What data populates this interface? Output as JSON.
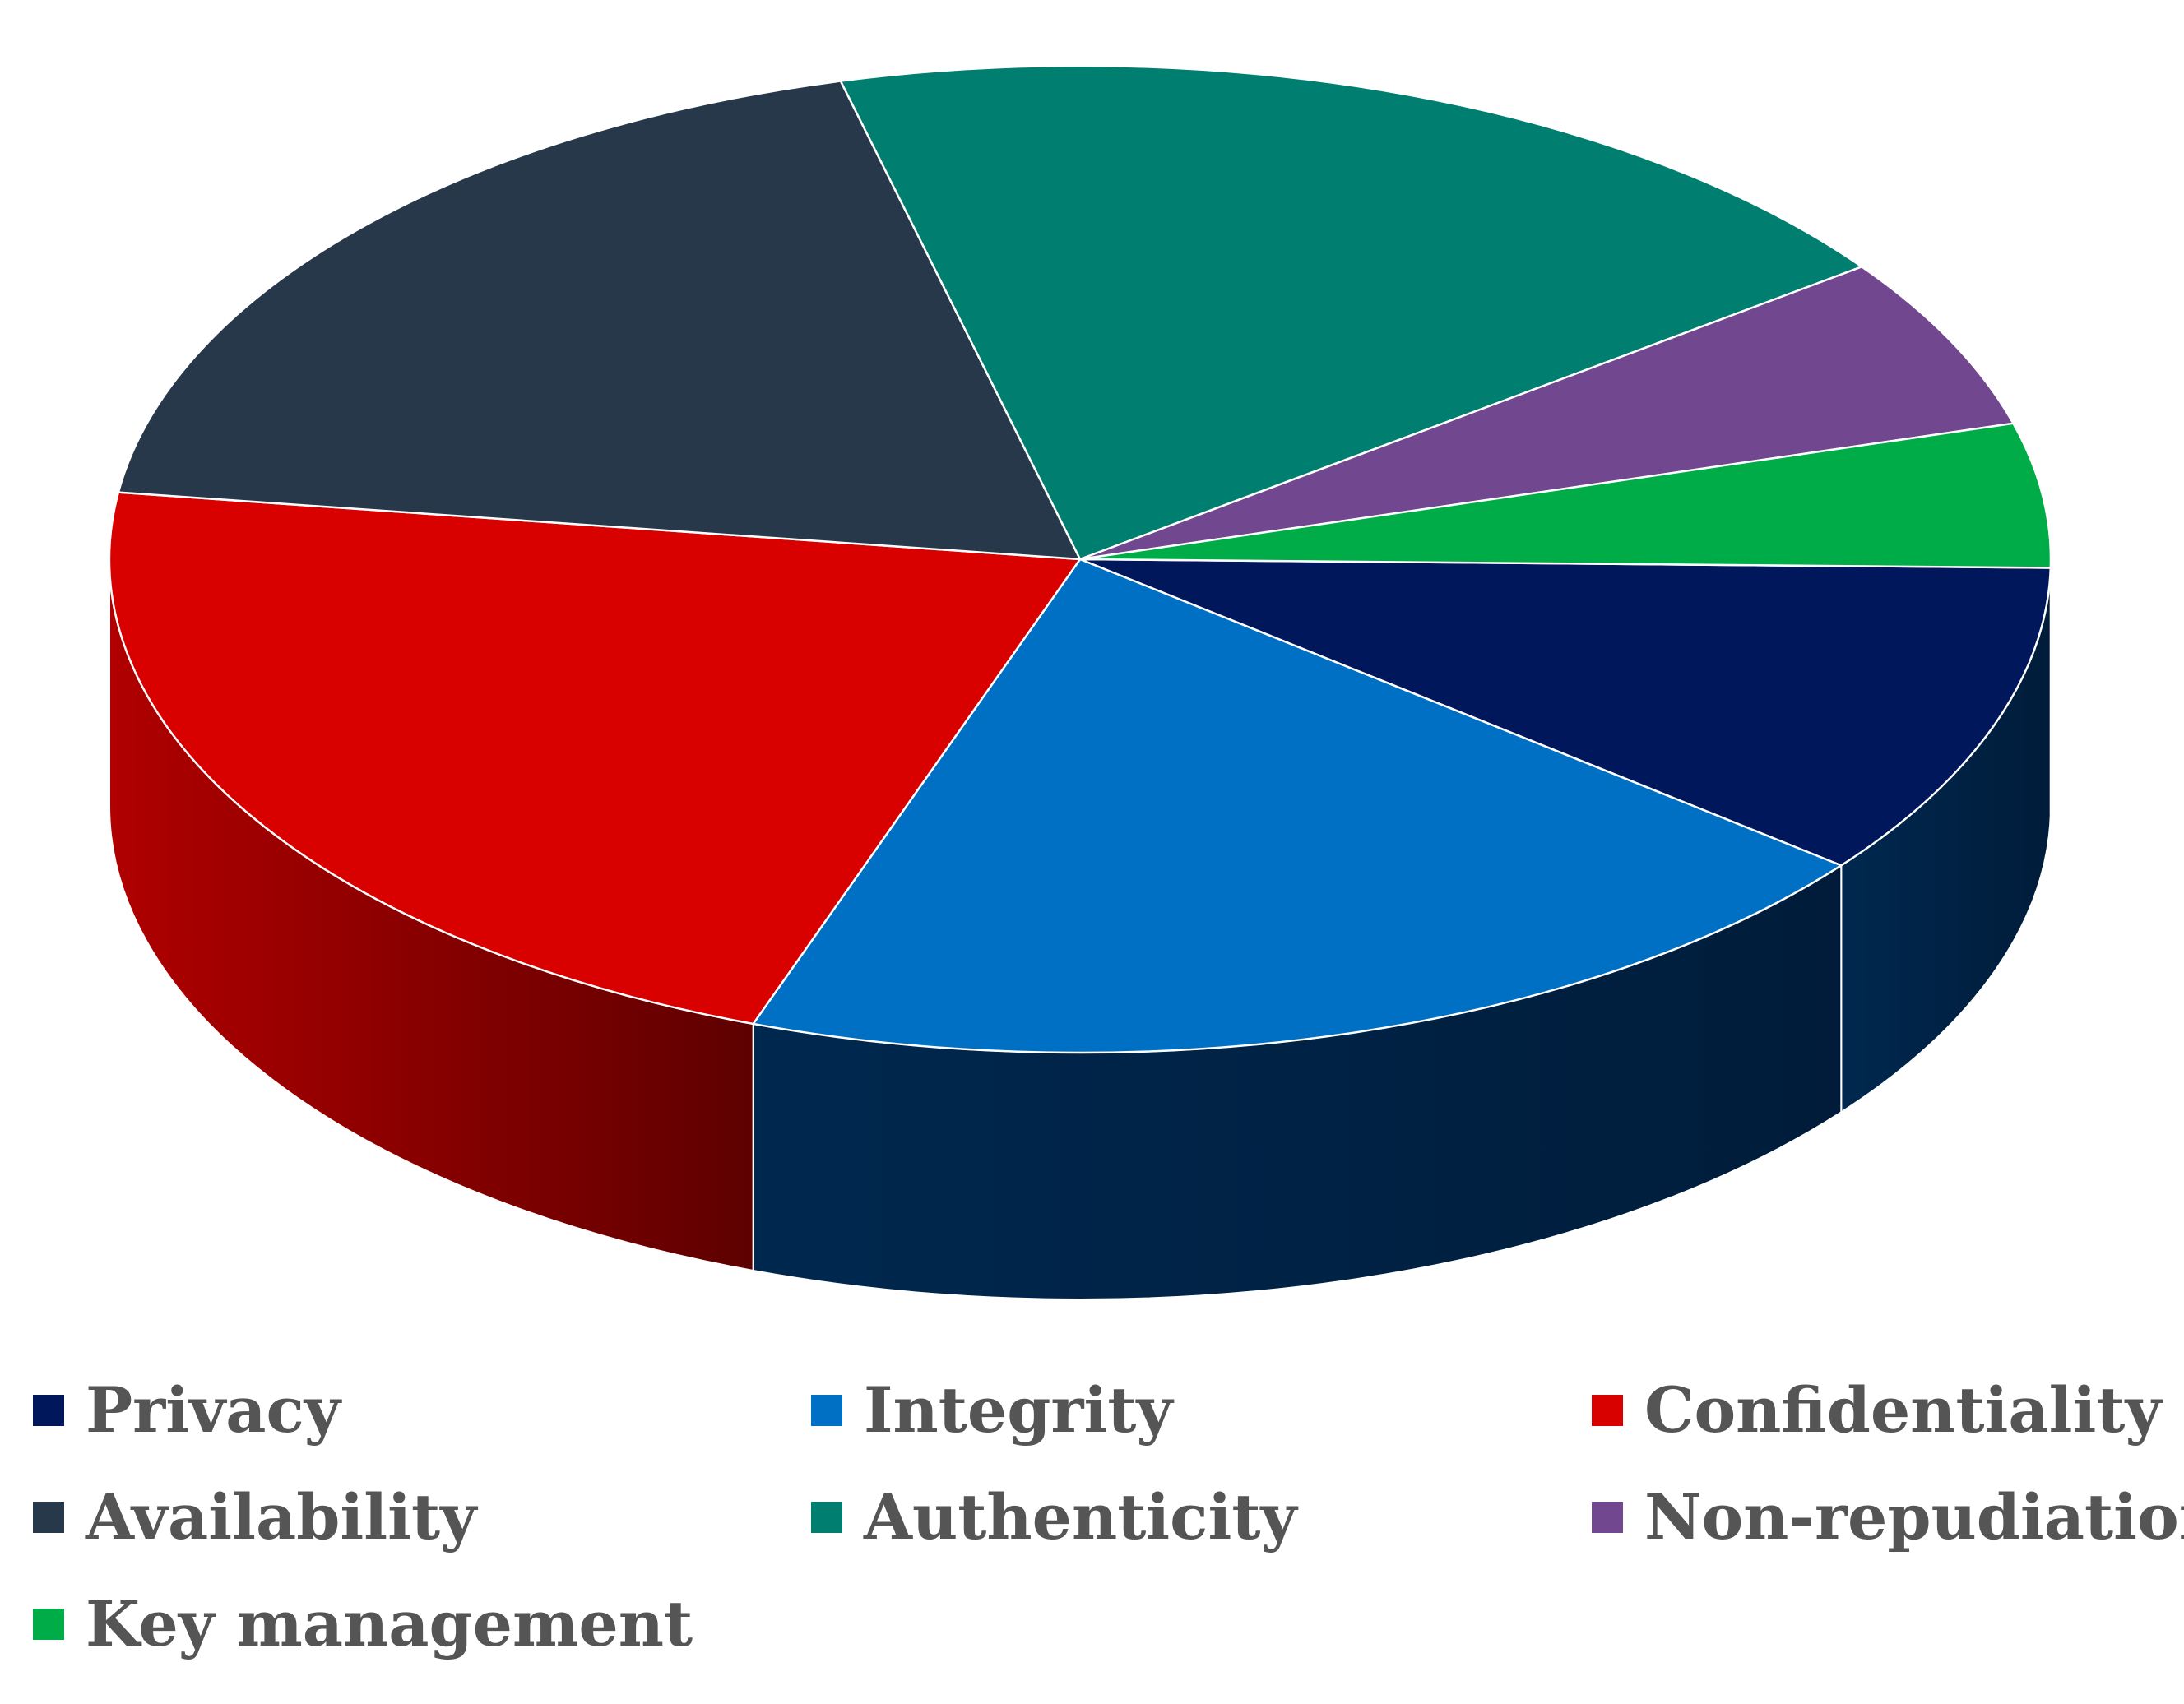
{
  "chart_data": {
    "type": "pie",
    "title": "",
    "style": "3d",
    "legend_position": "bottom",
    "categories": [
      "Privacy",
      "Integrity",
      "Confidentiality",
      "Availability",
      "Authenticity",
      "Non-repudiation",
      "Key management"
    ],
    "values": [
      11,
      21,
      23,
      20,
      20,
      6,
      5
    ],
    "colors": [
      "#00175c",
      "#0070c5",
      "#d90000",
      "#27384a",
      "#007f70",
      "#71478f",
      "#00ac47"
    ],
    "side_colors": [
      "#00244b",
      "#00244b",
      "#8a0000",
      "#1f2c3a",
      "#005e53",
      "#4f3066",
      "#007a33"
    ]
  }
}
